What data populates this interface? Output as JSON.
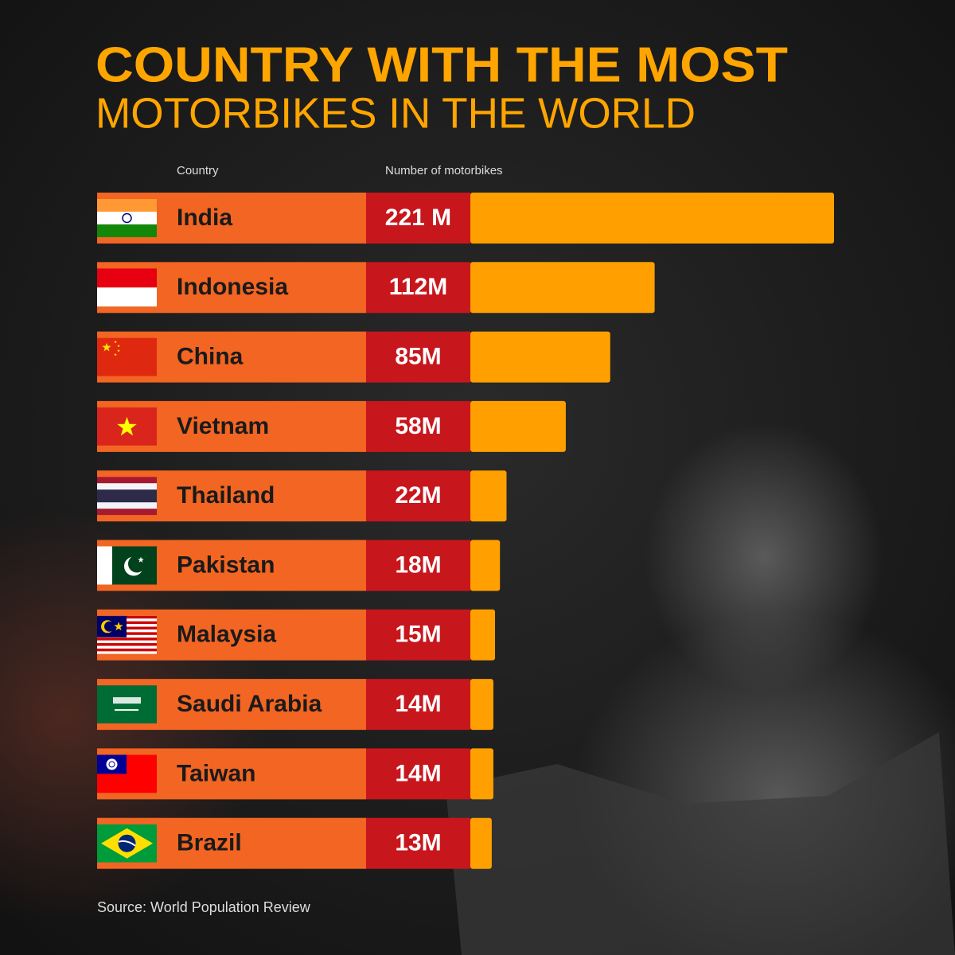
{
  "chart_data": {
    "type": "bar",
    "title": "COUNTRY WITH THE MOST",
    "subtitle": "MOTORBIKES IN THE WORLD",
    "category_header": "Country",
    "value_header": "Number of motorbikes",
    "categories": [
      "India",
      "Indonesia",
      "China",
      "Vietnam",
      "Thailand",
      "Pakistan",
      "Malaysia",
      "Saudi Arabia",
      "Taiwan",
      "Brazil"
    ],
    "values": [
      221,
      112,
      85,
      58,
      22,
      18,
      15,
      14,
      14,
      13
    ],
    "value_labels": [
      "221 M",
      "112M",
      "85M",
      "58M",
      "22M",
      "18M",
      "15M",
      "14M",
      "14M",
      "13M"
    ],
    "color": "#ffa000",
    "source": "Source: World Population Review"
  }
}
